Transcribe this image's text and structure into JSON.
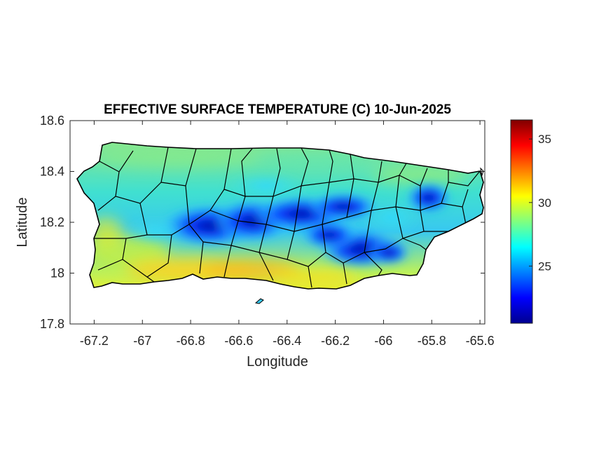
{
  "chart_data": {
    "type": "heatmap",
    "title": "EFFECTIVE SURFACE TEMPERATURE (C) 10-Jun-2025",
    "xlabel": "Longitude",
    "ylabel": "Latitude",
    "xlim": [
      -67.3,
      -65.58
    ],
    "ylim": [
      17.8,
      18.6
    ],
    "xticks": [
      -67.2,
      -67,
      -66.8,
      -66.6,
      -66.4,
      -66.2,
      -66,
      -65.8,
      -65.6
    ],
    "xtick_labels": [
      "-67.2",
      "-67",
      "-66.8",
      "-66.6",
      "-66.4",
      "-66.2",
      "-66",
      "-65.8",
      "-65.6"
    ],
    "yticks": [
      17.8,
      18,
      18.2,
      18.4,
      18.6
    ],
    "ytick_labels": [
      "17.8",
      "18",
      "18.2",
      "18.4",
      "18.6"
    ],
    "colorbar": {
      "colormap": "jet",
      "range": [
        20.5,
        36.5
      ],
      "ticks": [
        25,
        30,
        35
      ],
      "tick_labels": [
        "25",
        "30",
        "35"
      ]
    },
    "grid": false,
    "regions": [
      {
        "name": "cool central mountain ridge",
        "lon_range": [
          -66.85,
          -66.0
        ],
        "lat_center": 18.17,
        "value_approx": 22
      },
      {
        "name": "cool El Yunque area",
        "lon": -65.8,
        "lat": 18.29,
        "value_approx": 22
      },
      {
        "name": "warm southern coast",
        "lon_range": [
          -67.0,
          -66.2
        ],
        "lat_center": 18.0,
        "value_approx": 31
      },
      {
        "name": "moderate northern coast",
        "lon_range": [
          -67.1,
          -65.7
        ],
        "lat_center": 18.45,
        "value_approx": 27
      }
    ]
  }
}
